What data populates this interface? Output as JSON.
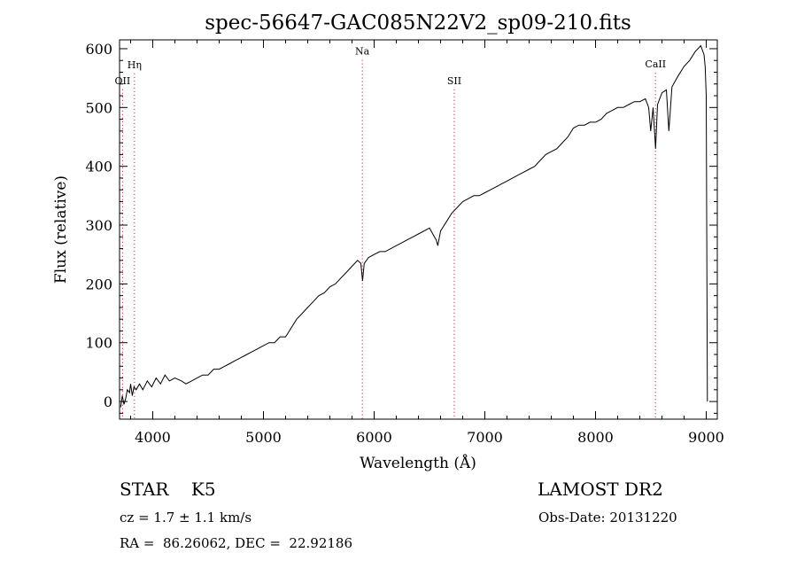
{
  "chart_data": {
    "type": "line",
    "title": "spec-56647-GAC085N22V2_sp09-210.fits",
    "xlabel": "Wavelength (Å)",
    "ylabel": "Flux (relative)",
    "xlim": [
      3700,
      9100
    ],
    "ylim": [
      -30,
      615
    ],
    "xticks": [
      4000,
      5000,
      6000,
      7000,
      8000,
      9000
    ],
    "yticks": [
      0,
      100,
      200,
      300,
      400,
      500,
      600
    ],
    "line_color": "#000000",
    "marker_color": "#cc0000",
    "lines": [
      {
        "label": "OII",
        "wavelength": 3727,
        "label_flux": 540
      },
      {
        "label": "Hη",
        "wavelength": 3835,
        "label_flux": 567
      },
      {
        "label": "Na",
        "wavelength": 5893,
        "label_flux": 590
      },
      {
        "label": "SII",
        "wavelength": 6724,
        "label_flux": 540
      },
      {
        "label": "CaII",
        "wavelength": 8542,
        "label_flux": 568
      }
    ],
    "series": [
      {
        "x": [
          3710,
          3725,
          3740,
          3755,
          3770,
          3790,
          3800,
          3815,
          3830,
          3850,
          3880,
          3910,
          3950,
          3990,
          4030,
          4070,
          4110,
          4150,
          4200,
          4260,
          4300,
          4350,
          4400,
          4450,
          4500,
          4550,
          4600,
          4650,
          4700,
          4750,
          4800,
          4850,
          4900,
          4950,
          5000,
          5050,
          5100,
          5150,
          5200,
          5250,
          5300,
          5350,
          5400,
          5450,
          5500,
          5550,
          5600,
          5650,
          5700,
          5750,
          5800,
          5850,
          5880,
          5895,
          5910,
          5950,
          6000,
          6050,
          6100,
          6150,
          6200,
          6250,
          6300,
          6350,
          6400,
          6450,
          6500,
          6530,
          6560,
          6575,
          6600,
          6650,
          6700,
          6750,
          6800,
          6850,
          6900,
          6950,
          7000,
          7050,
          7100,
          7150,
          7200,
          7250,
          7300,
          7350,
          7400,
          7450,
          7500,
          7550,
          7600,
          7650,
          7700,
          7750,
          7800,
          7850,
          7900,
          7950,
          8000,
          8050,
          8100,
          8150,
          8200,
          8250,
          8300,
          8350,
          8400,
          8450,
          8480,
          8498,
          8520,
          8542,
          8560,
          8600,
          8640,
          8662,
          8690,
          8720,
          8750,
          8800,
          8850,
          8900,
          8950,
          8980,
          8990,
          9000,
          9010
        ],
        "y": [
          -10,
          10,
          -5,
          5,
          20,
          15,
          30,
          10,
          25,
          20,
          30,
          20,
          35,
          25,
          40,
          30,
          45,
          35,
          40,
          35,
          30,
          35,
          40,
          45,
          45,
          55,
          55,
          60,
          65,
          70,
          75,
          80,
          85,
          90,
          95,
          100,
          100,
          110,
          110,
          125,
          140,
          150,
          160,
          170,
          180,
          185,
          195,
          200,
          210,
          220,
          230,
          240,
          235,
          205,
          235,
          245,
          250,
          255,
          255,
          260,
          265,
          270,
          275,
          280,
          285,
          290,
          295,
          285,
          275,
          265,
          290,
          305,
          320,
          330,
          340,
          345,
          350,
          350,
          355,
          360,
          365,
          370,
          375,
          380,
          385,
          390,
          395,
          400,
          410,
          420,
          425,
          430,
          440,
          450,
          465,
          470,
          470,
          475,
          475,
          480,
          490,
          495,
          500,
          500,
          505,
          510,
          510,
          515,
          500,
          460,
          500,
          430,
          505,
          525,
          530,
          460,
          535,
          545,
          555,
          570,
          580,
          595,
          605,
          590,
          570,
          520,
          0
        ]
      }
    ]
  },
  "footer": {
    "star_line": "STAR    K5",
    "survey": "LAMOST DR2",
    "cz": "cz = 1.7 ± 1.1 km/s",
    "obs_date": "Obs-Date: 20131220",
    "radec": "RA =  86.26062, DEC =  22.92186"
  }
}
